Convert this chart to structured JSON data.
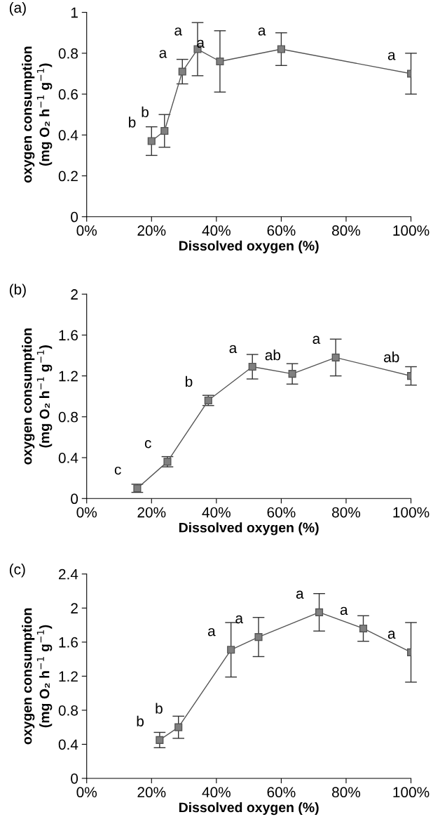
{
  "chart_data": [
    {
      "type": "line",
      "title": "(a)",
      "xlabel": "Dissolved oxygen (%)",
      "ylabel": "oxygen consumption\n(mg O₂ h$^{−1}$ g$^{−1}$)",
      "xlim": [
        0,
        100
      ],
      "xticks": [
        {
          "value": 0,
          "label": "0%"
        },
        {
          "value": 20,
          "label": "20%"
        },
        {
          "value": 40,
          "label": "40%"
        },
        {
          "value": 60,
          "label": "60%"
        },
        {
          "value": 80,
          "label": "80%"
        },
        {
          "value": 100,
          "label": "100%"
        }
      ],
      "ylim": [
        0,
        1
      ],
      "yticks": [
        0,
        0.2,
        0.4,
        0.6,
        0.8,
        1
      ],
      "grid": false,
      "legend": false,
      "marker": "square",
      "line_style": "solid",
      "series": [
        {
          "color": "#808080",
          "x": [
            20,
            24,
            29.5,
            34.2,
            41.1,
            60,
            100
          ],
          "values": [
            0.37,
            0.42,
            0.71,
            0.82,
            0.76,
            0.82,
            0.7
          ],
          "errors": [
            0.07,
            0.08,
            0.06,
            0.13,
            0.15,
            0.08,
            0.1
          ]
        }
      ],
      "annotations": [
        {
          "text": "b",
          "x": 20,
          "y": 0.37
        },
        {
          "text": "b",
          "x": 24,
          "y": 0.42
        },
        {
          "text": "a",
          "x": 29.5,
          "y": 0.71
        },
        {
          "text": "a",
          "x": 34.2,
          "y": 0.82
        },
        {
          "text": "a",
          "x": 41.1,
          "y": 0.76
        },
        {
          "text": "a",
          "x": 60,
          "y": 0.82
        },
        {
          "text": "a",
          "x": 100,
          "y": 0.7
        }
      ]
    },
    {
      "type": "line",
      "title": "(b)",
      "xlabel": "Dissolved oxygen (%)",
      "ylabel": "oxygen consumption\n(mg O₂ h$^{−1}$ g$^{−1}$)",
      "xlim": [
        0,
        100
      ],
      "xticks": [
        {
          "value": 0,
          "label": "0%"
        },
        {
          "value": 20,
          "label": "20%"
        },
        {
          "value": 40,
          "label": "40%"
        },
        {
          "value": 60,
          "label": "60%"
        },
        {
          "value": 80,
          "label": "80%"
        },
        {
          "value": 100,
          "label": "100%"
        }
      ],
      "ylim": [
        0,
        2
      ],
      "yticks": [
        0,
        0.4,
        0.8,
        1.2,
        1.6,
        2
      ],
      "grid": false,
      "legend": false,
      "marker": "square",
      "line_style": "solid",
      "series": [
        {
          "color": "#808080",
          "x": [
            15.6,
            24.9,
            37.5,
            51.1,
            63.4,
            76.8,
            100
          ],
          "values": [
            0.1,
            0.36,
            0.96,
            1.29,
            1.22,
            1.38,
            1.2
          ],
          "errors": [
            0.04,
            0.05,
            0.05,
            0.12,
            0.1,
            0.18,
            0.09
          ]
        }
      ],
      "annotations": [
        {
          "text": "c",
          "x": 15.6,
          "y": 0.1
        },
        {
          "text": "c",
          "x": 24.9,
          "y": 0.36
        },
        {
          "text": "b",
          "x": 37.5,
          "y": 0.96
        },
        {
          "text": "a",
          "x": 51.1,
          "y": 1.29
        },
        {
          "text": "ab",
          "x": 63.4,
          "y": 1.22
        },
        {
          "text": "a",
          "x": 76.8,
          "y": 1.38
        },
        {
          "text": "ab",
          "x": 100,
          "y": 1.2
        }
      ]
    },
    {
      "type": "line",
      "title": "(c)",
      "xlabel": "Dissolved oxygen (%)",
      "ylabel": "oxygen consumption\n(mg O₂ h$^{−1}$ g$^{−1}$)",
      "xlim": [
        0,
        100
      ],
      "xticks": [
        {
          "value": 0,
          "label": "0%"
        },
        {
          "value": 20,
          "label": "20%"
        },
        {
          "value": 40,
          "label": "40%"
        },
        {
          "value": 60,
          "label": "60%"
        },
        {
          "value": 80,
          "label": "80%"
        },
        {
          "value": 100,
          "label": "100%"
        }
      ],
      "ylim": [
        0,
        2.4
      ],
      "yticks": [
        0,
        0.4,
        0.8,
        1.2,
        1.6,
        2,
        2.4
      ],
      "grid": false,
      "legend": false,
      "marker": "square",
      "line_style": "solid",
      "series": [
        {
          "color": "#808080",
          "x": [
            22.5,
            28.3,
            44.5,
            53,
            71.7,
            85.3,
            100
          ],
          "values": [
            0.45,
            0.6,
            1.51,
            1.66,
            1.95,
            1.76,
            1.48
          ],
          "errors": [
            0.09,
            0.13,
            0.32,
            0.23,
            0.22,
            0.15,
            0.35
          ]
        }
      ],
      "annotations": [
        {
          "text": "b",
          "x": 22.5,
          "y": 0.45
        },
        {
          "text": "b",
          "x": 28.3,
          "y": 0.6
        },
        {
          "text": "a",
          "x": 44.5,
          "y": 1.51
        },
        {
          "text": "a",
          "x": 53,
          "y": 1.66
        },
        {
          "text": "a",
          "x": 71.7,
          "y": 1.95
        },
        {
          "text": "a",
          "x": 85.3,
          "y": 1.76
        },
        {
          "text": "a",
          "x": 100,
          "y": 1.48
        }
      ]
    }
  ]
}
